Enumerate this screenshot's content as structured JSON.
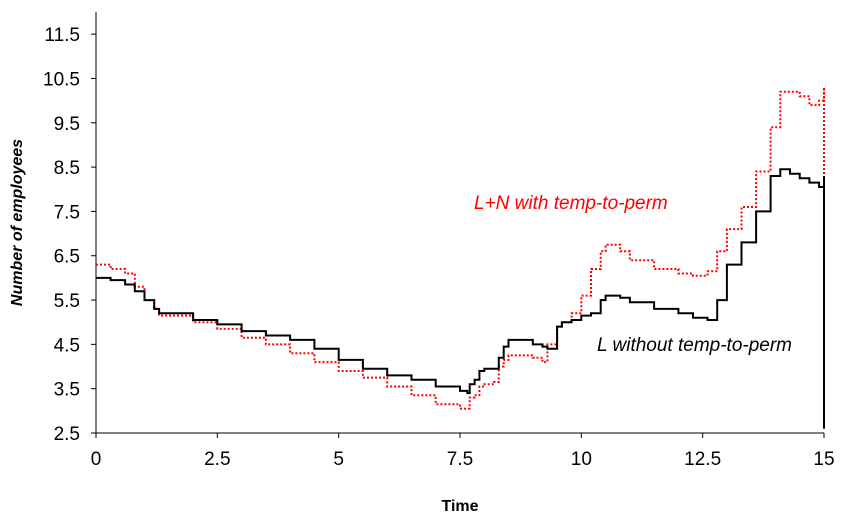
{
  "chart_data": {
    "type": "line",
    "title": "",
    "xlabel": "Time",
    "ylabel": "Number of employees",
    "xlim": [
      0,
      15
    ],
    "ylim": [
      2.5,
      12
    ],
    "x_ticks": [
      "0",
      "2.5",
      "5",
      "7.5",
      "10",
      "12.5",
      "15"
    ],
    "x_tick_values": [
      0,
      2.5,
      5,
      7.5,
      10,
      12.5,
      15
    ],
    "y_ticks": [
      "2.5",
      "3.5",
      "4.5",
      "5.5",
      "6.5",
      "7.5",
      "8.5",
      "9.5",
      "10.5",
      "11.5"
    ],
    "y_tick_values": [
      2.5,
      3.5,
      4.5,
      5.5,
      6.5,
      7.5,
      8.5,
      9.5,
      10.5,
      11.5
    ],
    "grid": false,
    "annotations": [
      {
        "text": "L+N with temp-to-perm",
        "series": 0,
        "color": "#ff0000"
      },
      {
        "text": "L without temp-to-perm",
        "series": 1,
        "color": "#000000"
      }
    ],
    "series": [
      {
        "color": "#ff0000",
        "style": "dotted",
        "x": [
          0,
          0.3,
          0.6,
          0.8,
          1.0,
          1.2,
          1.3,
          2.0,
          2.5,
          3.0,
          3.5,
          4.0,
          4.5,
          5.0,
          5.5,
          6.0,
          6.5,
          7.0,
          7.5,
          7.65,
          7.7,
          7.8,
          7.9,
          8.0,
          8.2,
          8.3,
          8.4,
          8.5,
          9.0,
          9.2,
          9.3,
          9.5,
          9.6,
          9.8,
          10.0,
          10.2,
          10.4,
          10.5,
          10.8,
          11.0,
          11.5,
          12.0,
          12.3,
          12.6,
          12.8,
          13.0,
          13.3,
          13.6,
          13.9,
          14.1,
          14.3,
          14.5,
          14.7,
          14.9,
          15.0,
          15.0
        ],
        "y": [
          6.3,
          6.2,
          6.1,
          5.8,
          5.5,
          5.3,
          5.15,
          5.0,
          4.85,
          4.65,
          4.5,
          4.3,
          4.1,
          3.9,
          3.75,
          3.55,
          3.35,
          3.15,
          3.05,
          3.05,
          3.3,
          3.35,
          3.55,
          3.6,
          3.65,
          4.0,
          4.15,
          4.25,
          4.2,
          4.1,
          4.5,
          4.9,
          5.0,
          5.2,
          5.6,
          6.2,
          6.6,
          6.75,
          6.6,
          6.4,
          6.2,
          6.1,
          6.05,
          6.15,
          6.6,
          7.1,
          7.6,
          8.4,
          9.4,
          10.2,
          10.2,
          10.1,
          9.9,
          10.0,
          10.3,
          2.6
        ]
      },
      {
        "color": "#000000",
        "style": "solid",
        "x": [
          0,
          0.3,
          0.6,
          0.8,
          1.0,
          1.2,
          1.3,
          2.0,
          2.5,
          3.0,
          3.5,
          4.0,
          4.5,
          5.0,
          5.5,
          6.0,
          6.5,
          7.0,
          7.5,
          7.65,
          7.7,
          7.8,
          7.9,
          8.0,
          8.2,
          8.3,
          8.4,
          8.5,
          9.0,
          9.2,
          9.3,
          9.5,
          9.6,
          9.8,
          10.0,
          10.2,
          10.4,
          10.5,
          10.8,
          11.0,
          11.5,
          12.0,
          12.3,
          12.6,
          12.8,
          13.0,
          13.3,
          13.6,
          13.9,
          14.1,
          14.3,
          14.5,
          14.7,
          14.9,
          15.0,
          15.0
        ],
        "y": [
          6.0,
          5.95,
          5.85,
          5.7,
          5.5,
          5.3,
          5.2,
          5.05,
          4.95,
          4.8,
          4.7,
          4.6,
          4.4,
          4.15,
          3.95,
          3.8,
          3.7,
          3.55,
          3.45,
          3.4,
          3.6,
          3.7,
          3.9,
          3.95,
          3.95,
          4.2,
          4.45,
          4.6,
          4.5,
          4.45,
          4.4,
          4.9,
          5.0,
          5.05,
          5.15,
          5.2,
          5.5,
          5.6,
          5.55,
          5.45,
          5.3,
          5.2,
          5.1,
          5.05,
          5.5,
          6.3,
          6.8,
          7.5,
          8.3,
          8.45,
          8.35,
          8.25,
          8.15,
          8.05,
          8.3,
          2.6
        ]
      }
    ]
  }
}
